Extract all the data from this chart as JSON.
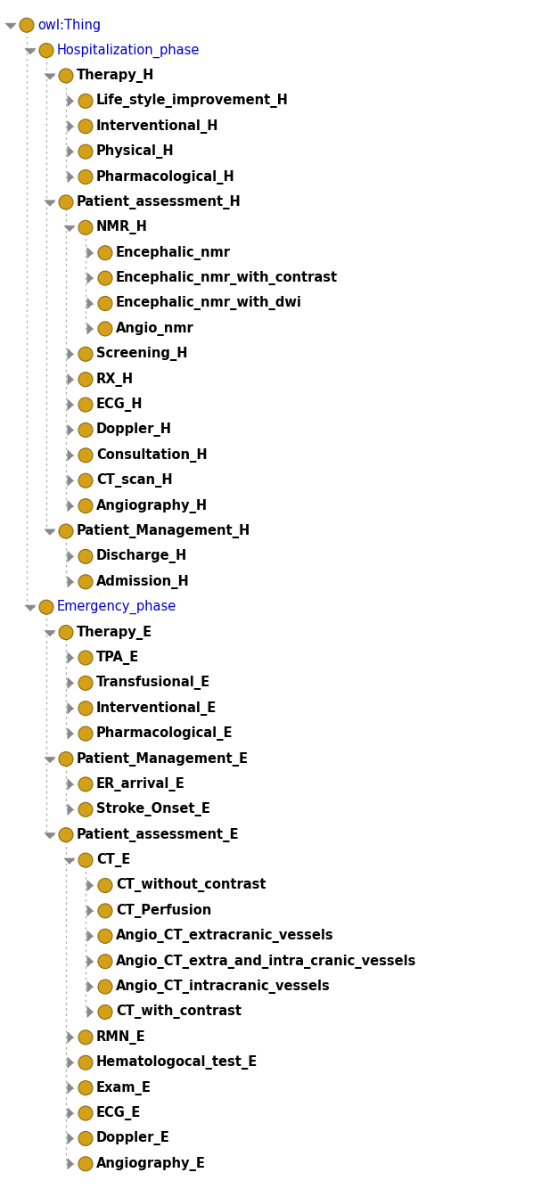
{
  "bg_color": "#ffffff",
  "node_color": "#D4A017",
  "node_edge_color": "#8B6914",
  "text_color": "#000000",
  "line_color": "#aaaaaa",
  "arrow_color": "#888888",
  "font_size": 10.5,
  "fig_width": 5.98,
  "fig_height": 13.34,
  "nodes": [
    {
      "label": "owl:Thing",
      "level": 0,
      "row": 0,
      "expanded": true,
      "bold": false,
      "special": true
    },
    {
      "label": "Hospitalization_phase",
      "level": 1,
      "row": 1,
      "expanded": true,
      "bold": false,
      "special": true
    },
    {
      "label": "Therapy_H",
      "level": 2,
      "row": 2,
      "expanded": true,
      "bold": true,
      "special": false
    },
    {
      "label": "Life_style_improvement_H",
      "level": 3,
      "row": 3,
      "expanded": false,
      "bold": true,
      "special": false
    },
    {
      "label": "Interventional_H",
      "level": 3,
      "row": 4,
      "expanded": false,
      "bold": true,
      "special": false
    },
    {
      "label": "Physical_H",
      "level": 3,
      "row": 5,
      "expanded": false,
      "bold": true,
      "special": false
    },
    {
      "label": "Pharmacological_H",
      "level": 3,
      "row": 6,
      "expanded": false,
      "bold": true,
      "special": false
    },
    {
      "label": "Patient_assessment_H",
      "level": 2,
      "row": 7,
      "expanded": true,
      "bold": true,
      "special": false
    },
    {
      "label": "NMR_H",
      "level": 3,
      "row": 8,
      "expanded": true,
      "bold": true,
      "special": false
    },
    {
      "label": "Encephalic_nmr",
      "level": 4,
      "row": 9,
      "expanded": false,
      "bold": true,
      "special": false
    },
    {
      "label": "Encephalic_nmr_with_contrast",
      "level": 4,
      "row": 10,
      "expanded": false,
      "bold": true,
      "special": false
    },
    {
      "label": "Encephalic_nmr_with_dwi",
      "level": 4,
      "row": 11,
      "expanded": false,
      "bold": true,
      "special": false
    },
    {
      "label": "Angio_nmr",
      "level": 4,
      "row": 12,
      "expanded": false,
      "bold": true,
      "special": false
    },
    {
      "label": "Screening_H",
      "level": 3,
      "row": 13,
      "expanded": false,
      "bold": true,
      "special": false
    },
    {
      "label": "RX_H",
      "level": 3,
      "row": 14,
      "expanded": false,
      "bold": true,
      "special": false
    },
    {
      "label": "ECG_H",
      "level": 3,
      "row": 15,
      "expanded": false,
      "bold": true,
      "special": false
    },
    {
      "label": "Doppler_H",
      "level": 3,
      "row": 16,
      "expanded": false,
      "bold": true,
      "special": false
    },
    {
      "label": "Consultation_H",
      "level": 3,
      "row": 17,
      "expanded": false,
      "bold": true,
      "special": false
    },
    {
      "label": "CT_scan_H",
      "level": 3,
      "row": 18,
      "expanded": false,
      "bold": true,
      "special": false
    },
    {
      "label": "Angiography_H",
      "level": 3,
      "row": 19,
      "expanded": false,
      "bold": true,
      "special": false
    },
    {
      "label": "Patient_Management_H",
      "level": 2,
      "row": 20,
      "expanded": true,
      "bold": true,
      "special": false
    },
    {
      "label": "Discharge_H",
      "level": 3,
      "row": 21,
      "expanded": false,
      "bold": true,
      "special": false
    },
    {
      "label": "Admission_H",
      "level": 3,
      "row": 22,
      "expanded": false,
      "bold": true,
      "special": false
    },
    {
      "label": "Emergency_phase",
      "level": 1,
      "row": 23,
      "expanded": true,
      "bold": false,
      "special": true
    },
    {
      "label": "Therapy_E",
      "level": 2,
      "row": 24,
      "expanded": true,
      "bold": true,
      "special": false
    },
    {
      "label": "TPA_E",
      "level": 3,
      "row": 25,
      "expanded": false,
      "bold": true,
      "special": false
    },
    {
      "label": "Transfusional_E",
      "level": 3,
      "row": 26,
      "expanded": false,
      "bold": true,
      "special": false
    },
    {
      "label": "Interventional_E",
      "level": 3,
      "row": 27,
      "expanded": false,
      "bold": true,
      "special": false
    },
    {
      "label": "Pharmacological_E",
      "level": 3,
      "row": 28,
      "expanded": false,
      "bold": true,
      "special": false
    },
    {
      "label": "Patient_Management_E",
      "level": 2,
      "row": 29,
      "expanded": true,
      "bold": true,
      "special": false
    },
    {
      "label": "ER_arrival_E",
      "level": 3,
      "row": 30,
      "expanded": false,
      "bold": true,
      "special": false
    },
    {
      "label": "Stroke_Onset_E",
      "level": 3,
      "row": 31,
      "expanded": false,
      "bold": true,
      "special": false
    },
    {
      "label": "Patient_assessment_E",
      "level": 2,
      "row": 32,
      "expanded": true,
      "bold": true,
      "special": false
    },
    {
      "label": "CT_E",
      "level": 3,
      "row": 33,
      "expanded": true,
      "bold": true,
      "special": false
    },
    {
      "label": "CT_without_contrast",
      "level": 4,
      "row": 34,
      "expanded": false,
      "bold": true,
      "special": false
    },
    {
      "label": "CT_Perfusion",
      "level": 4,
      "row": 35,
      "expanded": false,
      "bold": true,
      "special": false
    },
    {
      "label": "Angio_CT_extracranic_vessels",
      "level": 4,
      "row": 36,
      "expanded": false,
      "bold": true,
      "special": false
    },
    {
      "label": "Angio_CT_extra_and_intra_cranic_vessels",
      "level": 4,
      "row": 37,
      "expanded": false,
      "bold": true,
      "special": false
    },
    {
      "label": "Angio_CT_intracranic_vessels",
      "level": 4,
      "row": 38,
      "expanded": false,
      "bold": true,
      "special": false
    },
    {
      "label": "CT_with_contrast",
      "level": 4,
      "row": 39,
      "expanded": false,
      "bold": true,
      "special": false
    },
    {
      "label": "RMN_E",
      "level": 3,
      "row": 40,
      "expanded": false,
      "bold": true,
      "special": false
    },
    {
      "label": "Hematologocal_test_E",
      "level": 3,
      "row": 41,
      "expanded": false,
      "bold": true,
      "special": false
    },
    {
      "label": "Exam_E",
      "level": 3,
      "row": 42,
      "expanded": false,
      "bold": true,
      "special": false
    },
    {
      "label": "ECG_E",
      "level": 3,
      "row": 43,
      "expanded": false,
      "bold": true,
      "special": false
    },
    {
      "label": "Doppler_E",
      "level": 3,
      "row": 44,
      "expanded": false,
      "bold": true,
      "special": false
    },
    {
      "label": "Angiography_E",
      "level": 3,
      "row": 45,
      "expanded": false,
      "bold": true,
      "special": false
    }
  ],
  "parent_child": [
    [
      0,
      [
        1,
        23
      ]
    ],
    [
      1,
      [
        2,
        7,
        20
      ]
    ],
    [
      2,
      [
        3,
        4,
        5,
        6
      ]
    ],
    [
      7,
      [
        8,
        13,
        14,
        15,
        16,
        17,
        18,
        19
      ]
    ],
    [
      8,
      [
        9,
        10,
        11,
        12
      ]
    ],
    [
      20,
      [
        21,
        22
      ]
    ],
    [
      23,
      [
        24,
        29,
        32
      ]
    ],
    [
      24,
      [
        25,
        26,
        27,
        28
      ]
    ],
    [
      29,
      [
        30,
        31
      ]
    ],
    [
      32,
      [
        33,
        40,
        41,
        42,
        43,
        44,
        45
      ]
    ],
    [
      33,
      [
        34,
        35,
        36,
        37,
        38,
        39
      ]
    ]
  ]
}
